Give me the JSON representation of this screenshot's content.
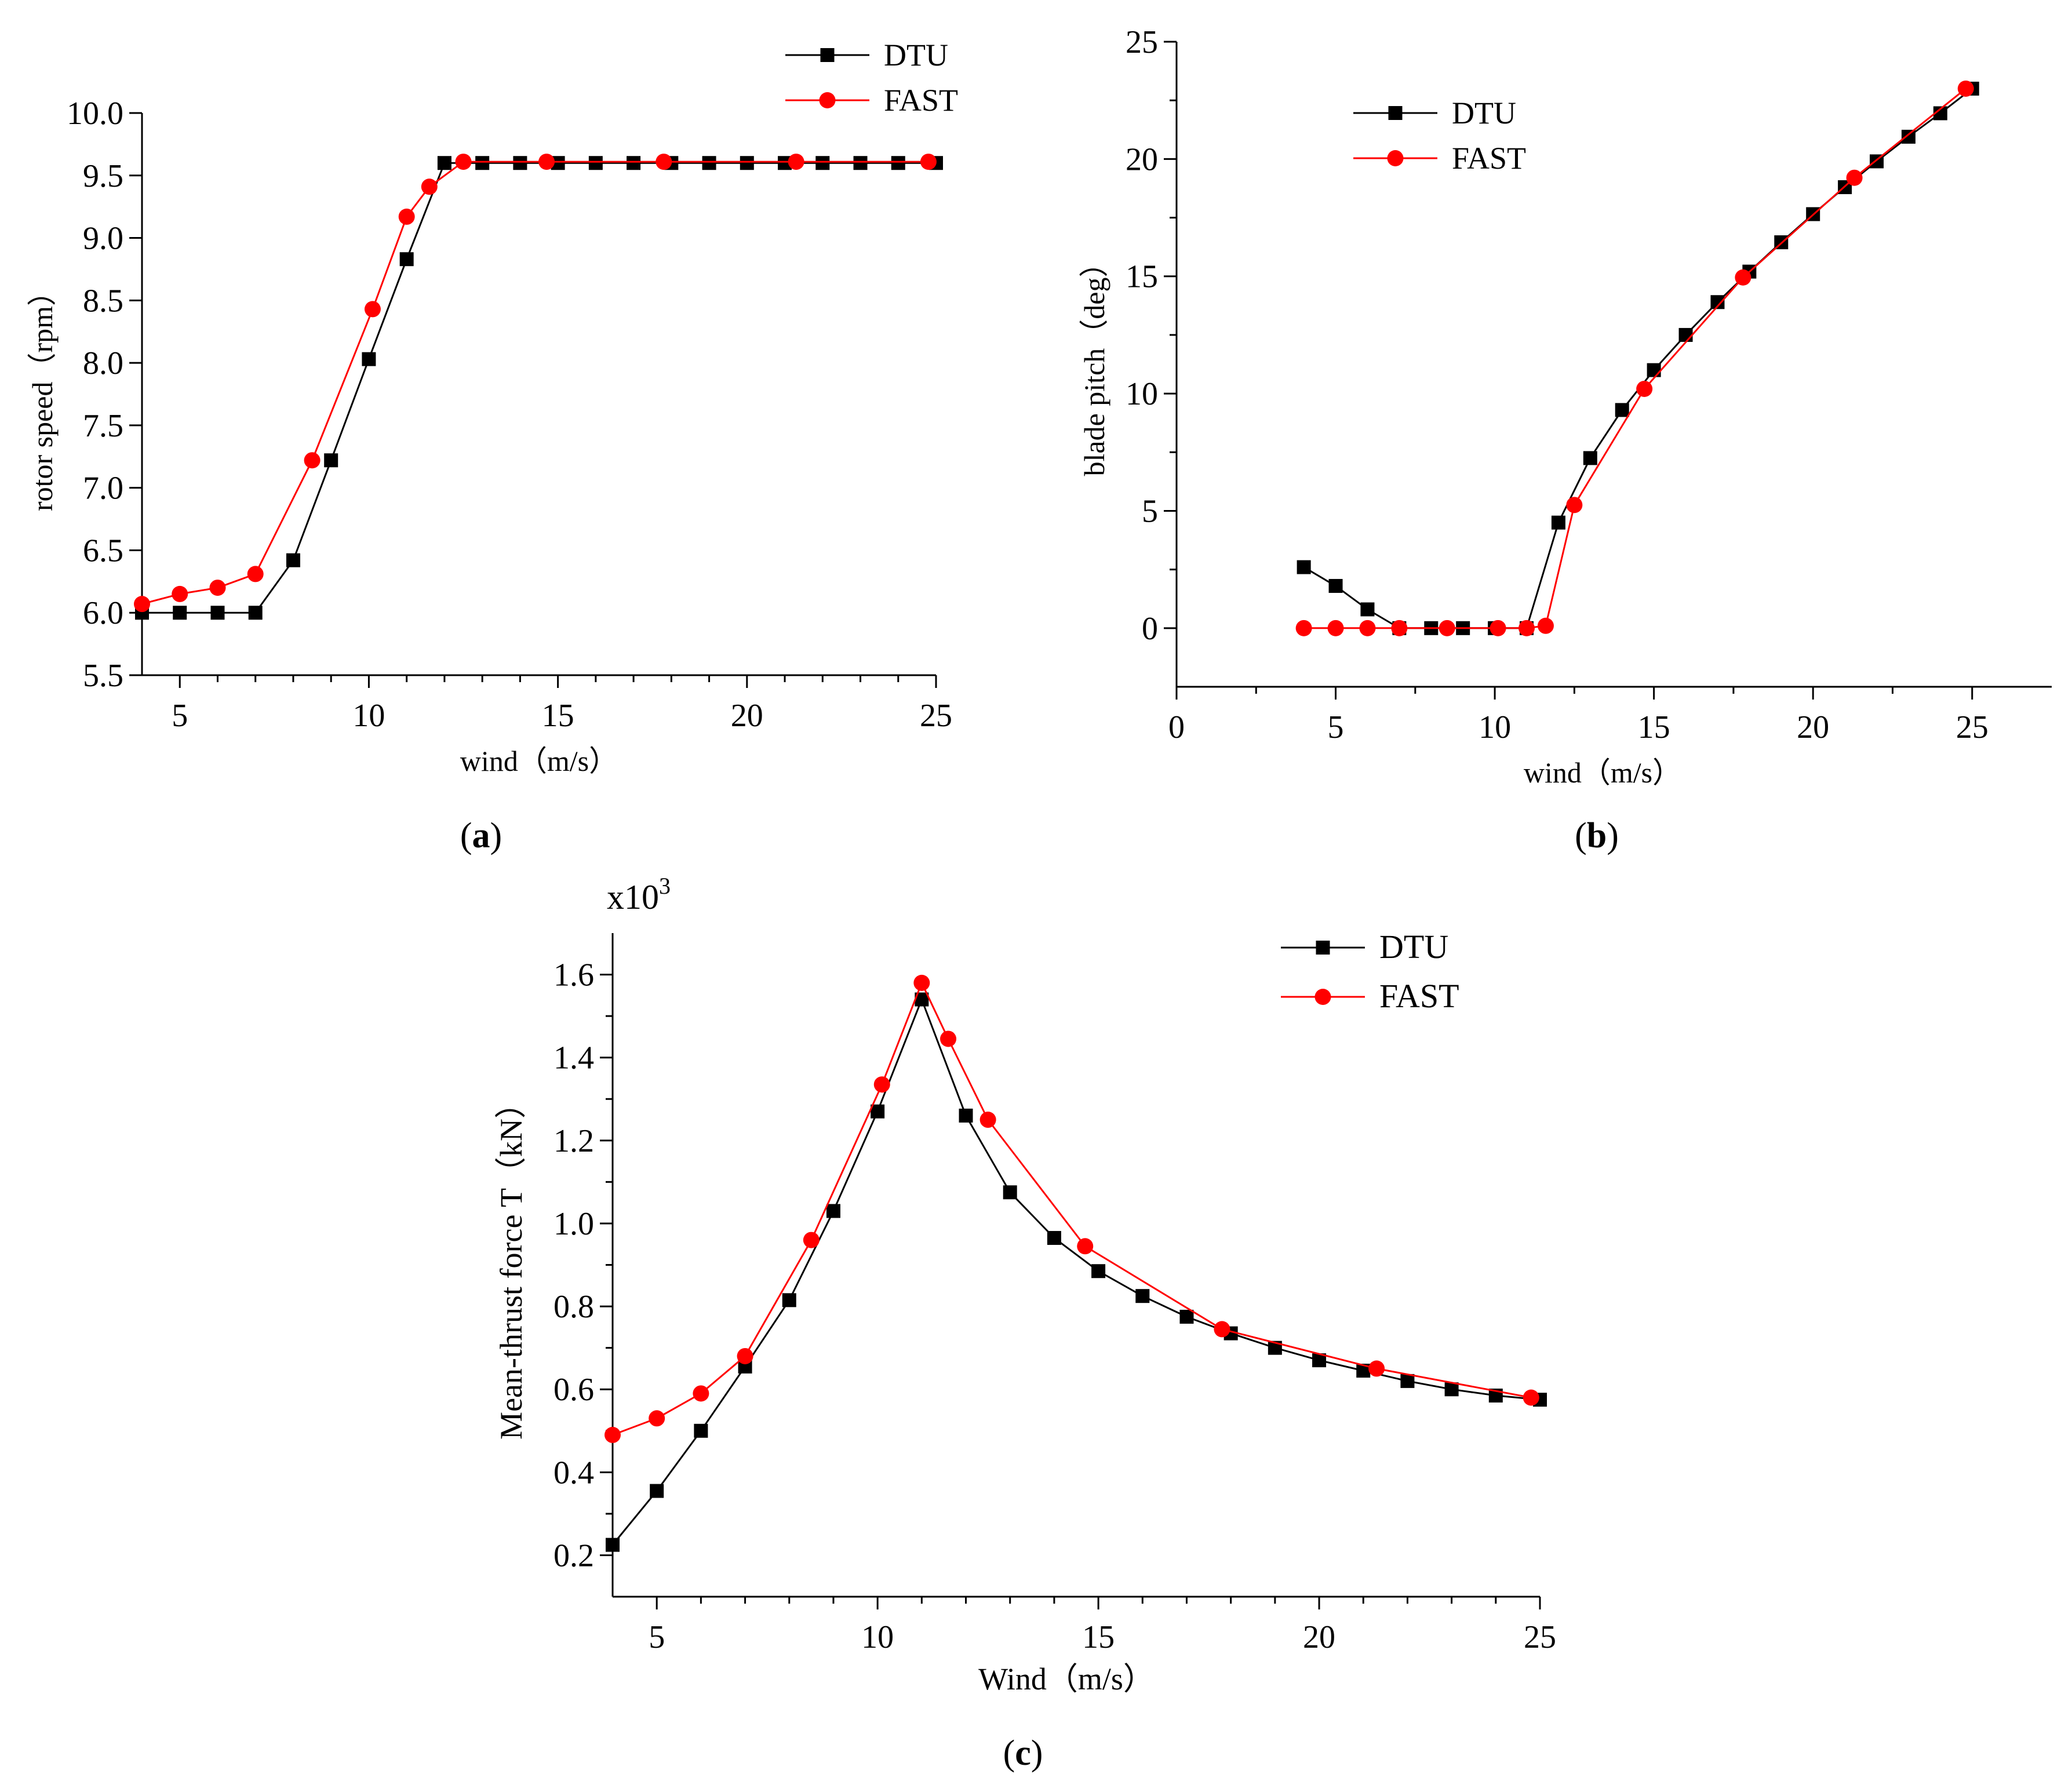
{
  "chart_data": [
    {
      "panel_label": "(a)",
      "type": "line",
      "xlabel": "wind（m/s）",
      "ylabel": "rotor speed（rpm）",
      "xlim": [
        4,
        25
      ],
      "ylim": [
        5.5,
        10.0
      ],
      "x_ticks": [
        5,
        10,
        15,
        20,
        25
      ],
      "y_ticks": [
        5.5,
        6.0,
        6.5,
        7.0,
        7.5,
        8.0,
        8.5,
        9.0,
        9.5,
        10.0
      ],
      "y_tick_labels": [
        "5.5",
        "6.0",
        "6.5",
        "7.0",
        "7.5",
        "8.0",
        "8.5",
        "9.0",
        "9.5",
        "10.0"
      ],
      "legend": "top-right",
      "series": [
        {
          "name": "DTU",
          "color": "#000000",
          "marker": "square",
          "x": [
            4,
            5,
            6,
            7,
            8,
            9,
            10,
            11,
            12,
            13,
            14,
            15,
            16,
            17,
            18,
            19,
            20,
            21,
            22,
            23,
            24,
            25
          ],
          "y": [
            6.0,
            6.0,
            6.0,
            6.0,
            6.42,
            7.22,
            8.03,
            8.83,
            9.6,
            9.6,
            9.6,
            9.6,
            9.6,
            9.6,
            9.6,
            9.6,
            9.6,
            9.6,
            9.6,
            9.6,
            9.6,
            9.6
          ]
        },
        {
          "name": "FAST",
          "color": "#ff0000",
          "marker": "circle",
          "x": [
            4,
            5,
            6,
            7,
            8.5,
            10.1,
            11,
            11.6,
            12.5,
            14.7,
            17.8,
            21.3,
            24.8
          ],
          "y": [
            6.07,
            6.15,
            6.2,
            6.31,
            7.22,
            8.43,
            9.17,
            9.41,
            9.61,
            9.61,
            9.61,
            9.61,
            9.61
          ]
        }
      ]
    },
    {
      "panel_label": "(b)",
      "type": "line",
      "xlabel": "wind（m/s）",
      "ylabel": "blade pitch（deg）",
      "xlim": [
        0,
        27.5
      ],
      "ylim": [
        -2.5,
        25
      ],
      "x_ticks": [
        0,
        5,
        10,
        15,
        20,
        25
      ],
      "y_ticks": [
        0,
        5,
        10,
        15,
        20,
        25
      ],
      "y_tick_labels": [
        "0",
        "5",
        "10",
        "15",
        "20",
        "25"
      ],
      "legend": "top-left",
      "series": [
        {
          "name": "DTU",
          "color": "#000000",
          "marker": "square",
          "x": [
            4,
            5,
            6,
            7,
            8,
            9,
            10,
            11,
            12,
            13,
            14,
            15,
            16,
            17,
            18,
            19,
            20,
            21,
            22,
            23,
            24,
            25
          ],
          "y": [
            2.6,
            1.8,
            0.8,
            0,
            0,
            0,
            0,
            0,
            4.5,
            7.25,
            9.3,
            11.0,
            12.5,
            13.9,
            15.2,
            16.45,
            17.65,
            18.8,
            19.9,
            20.95,
            21.95,
            23.0
          ]
        },
        {
          "name": "FAST",
          "color": "#ff0000",
          "marker": "circle",
          "x": [
            4,
            5,
            6,
            7,
            8.5,
            10.1,
            11,
            11.6,
            12.5,
            14.7,
            17.8,
            21.3,
            24.8
          ],
          "y": [
            0,
            0,
            0,
            0,
            0,
            0,
            0,
            0.1,
            5.25,
            10.2,
            14.95,
            19.2,
            23.0
          ]
        }
      ]
    },
    {
      "panel_label": "(c)",
      "type": "line",
      "xlabel": "Wind（m/s）",
      "ylabel": "Mean-thrust force T（kN）",
      "multiplier_base": "x10",
      "multiplier_exponent": "3",
      "xlim": [
        4,
        25
      ],
      "ylim": [
        0.1,
        1.7
      ],
      "x_ticks": [
        5,
        10,
        15,
        20,
        25
      ],
      "y_ticks": [
        0.2,
        0.4,
        0.6,
        0.8,
        1.0,
        1.2,
        1.4,
        1.6
      ],
      "y_tick_labels": [
        "0.2",
        "0.4",
        "0.6",
        "0.8",
        "1.0",
        "1.2",
        "1.4",
        "1.6"
      ],
      "legend": "top-right",
      "series": [
        {
          "name": "DTU",
          "color": "#000000",
          "marker": "square",
          "x": [
            4,
            5,
            6,
            7,
            8,
            9,
            10,
            11,
            12,
            13,
            14,
            15,
            16,
            17,
            18,
            19,
            20,
            21,
            22,
            23,
            24,
            25
          ],
          "y": [
            0.225,
            0.355,
            0.5,
            0.655,
            0.815,
            1.03,
            1.27,
            1.54,
            1.26,
            1.075,
            0.965,
            0.885,
            0.825,
            0.775,
            0.735,
            0.7,
            0.67,
            0.645,
            0.62,
            0.6,
            0.585,
            0.575
          ]
        },
        {
          "name": "FAST",
          "color": "#ff0000",
          "marker": "circle",
          "x": [
            4,
            5,
            6,
            7,
            8.5,
            10.1,
            11,
            11.6,
            12.5,
            14.7,
            17.8,
            21.3,
            24.8
          ],
          "y": [
            0.49,
            0.53,
            0.59,
            0.68,
            0.96,
            1.335,
            1.58,
            1.445,
            1.25,
            0.945,
            0.745,
            0.65,
            0.58
          ]
        }
      ]
    }
  ]
}
